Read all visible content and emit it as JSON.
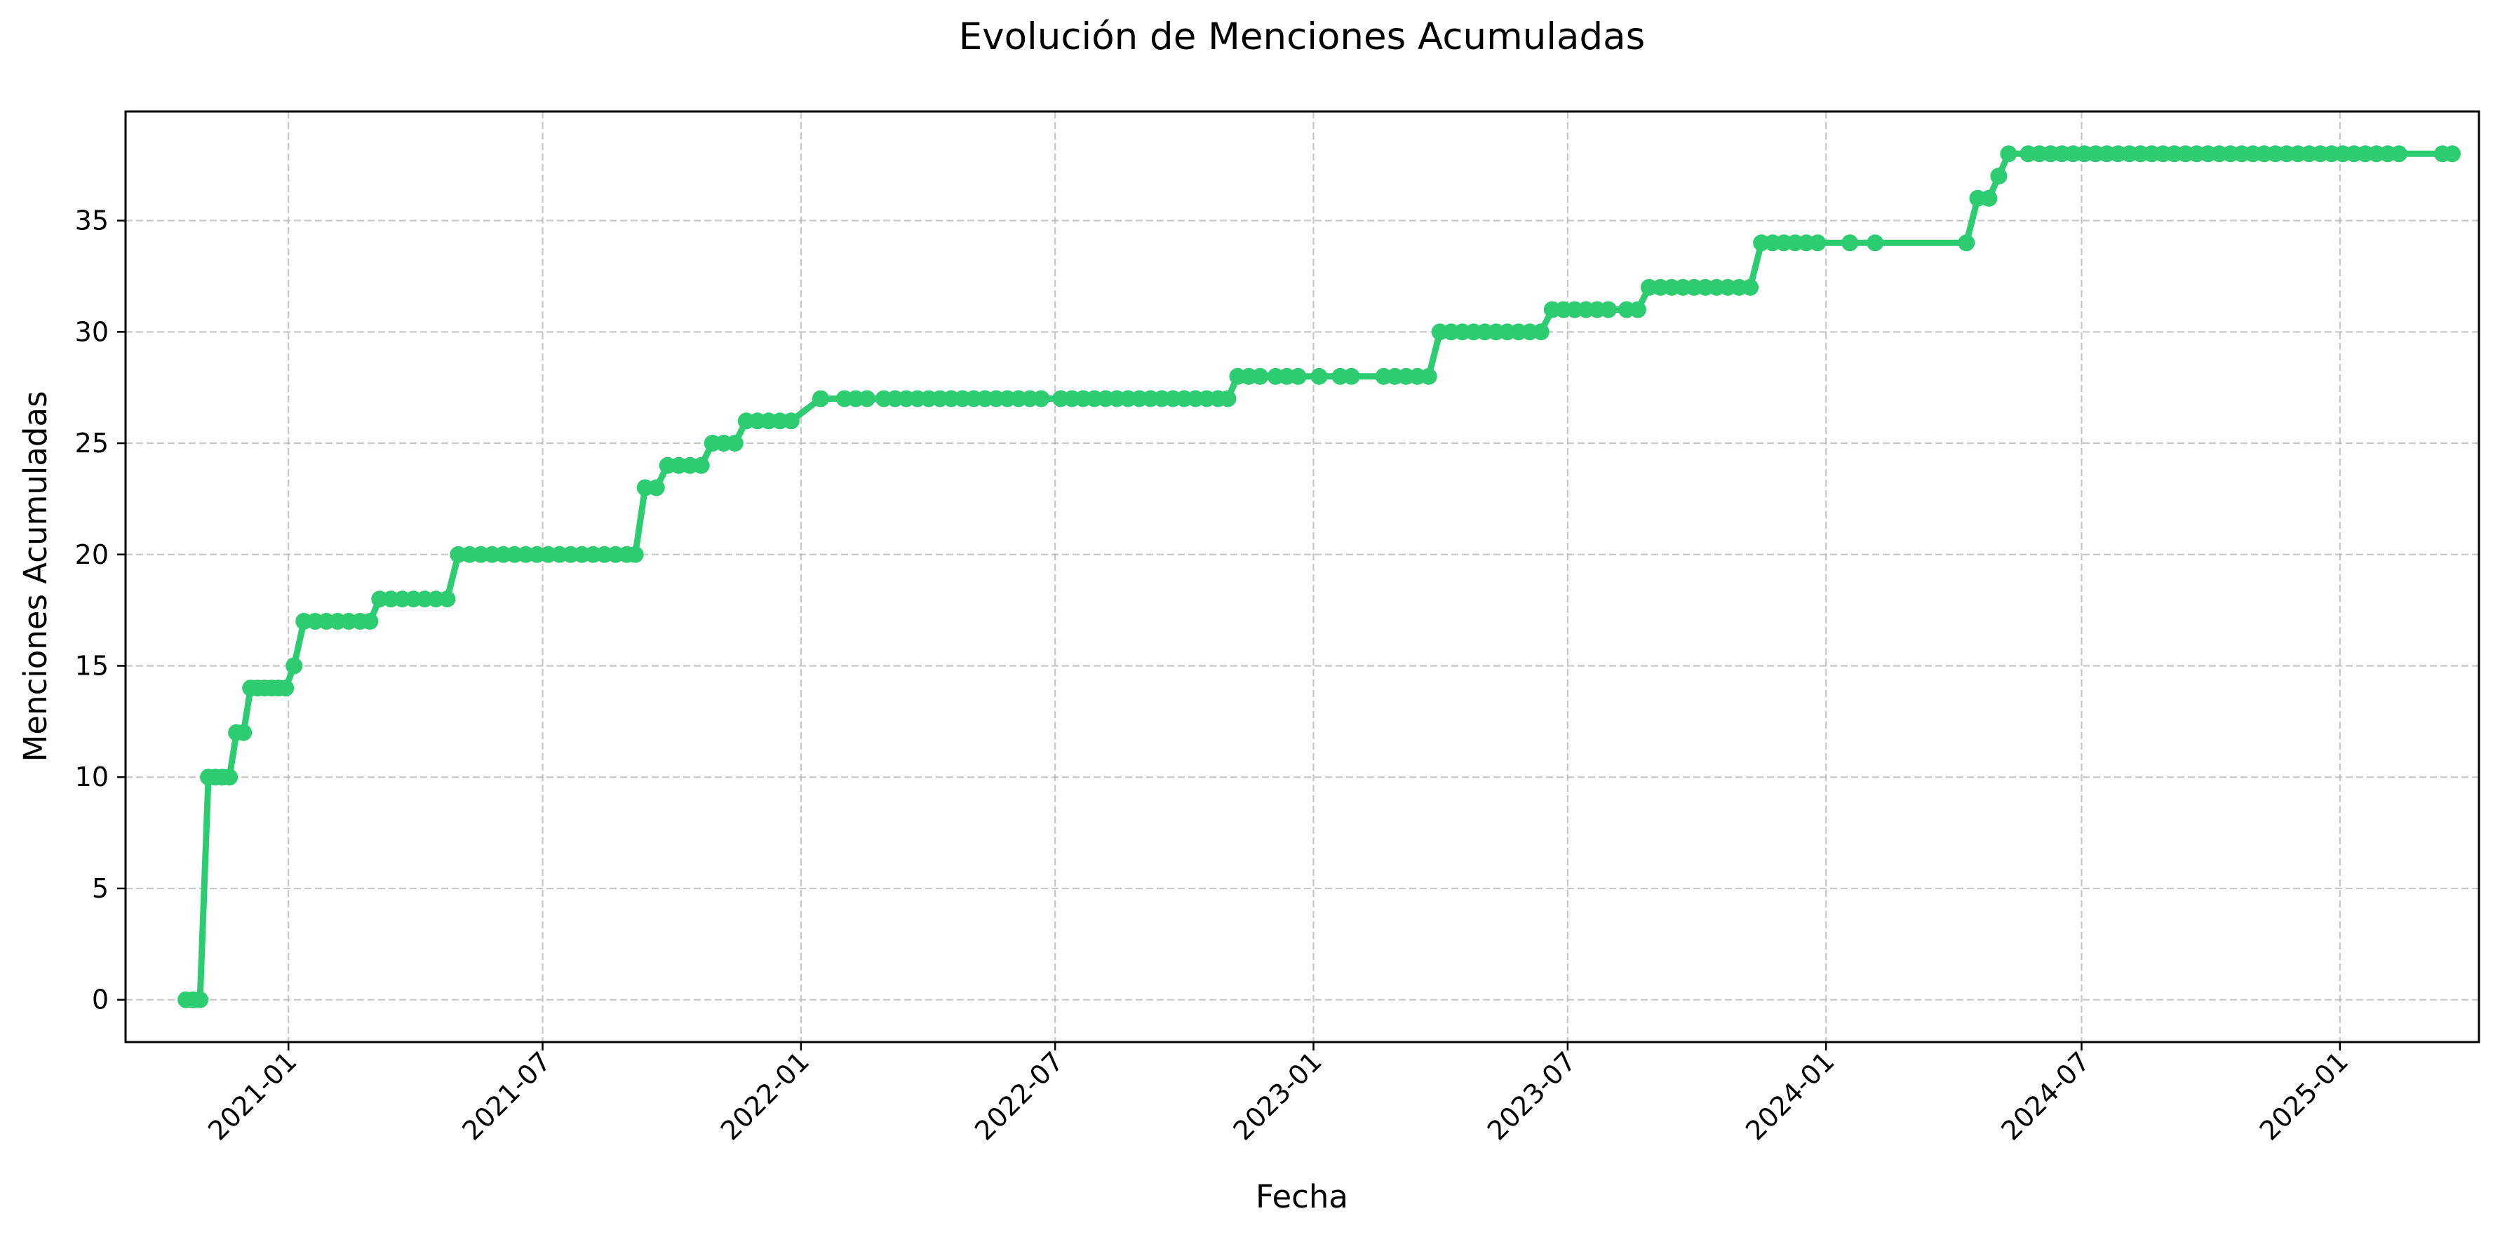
{
  "chart_data": {
    "type": "line",
    "title": "Evolución de Menciones Acumuladas",
    "xlabel": "Fecha",
    "ylabel": "Menciones Acumuladas",
    "x_type": "date",
    "xlim": [
      "2020-09-07",
      "2025-04-10"
    ],
    "ylim": [
      -1.9,
      39.9
    ],
    "x_ticks": [
      {
        "date": "2021-01-01",
        "label": "2021-01"
      },
      {
        "date": "2021-07-01",
        "label": "2021-07"
      },
      {
        "date": "2022-01-01",
        "label": "2022-01"
      },
      {
        "date": "2022-07-01",
        "label": "2022-07"
      },
      {
        "date": "2023-01-01",
        "label": "2023-01"
      },
      {
        "date": "2023-07-01",
        "label": "2023-07"
      },
      {
        "date": "2024-01-01",
        "label": "2024-01"
      },
      {
        "date": "2024-07-01",
        "label": "2024-07"
      },
      {
        "date": "2025-01-01",
        "label": "2025-01"
      }
    ],
    "y_ticks": [
      0,
      5,
      10,
      15,
      20,
      25,
      30,
      35
    ],
    "grid": true,
    "legend": "none",
    "series": [
      {
        "color": "#2ecc71",
        "marker": "circle",
        "points": [
          {
            "x": "2020-10-20",
            "y": 0
          },
          {
            "x": "2020-10-25",
            "y": 0
          },
          {
            "x": "2020-10-30",
            "y": 0
          },
          {
            "x": "2020-11-05",
            "y": 10
          },
          {
            "x": "2020-11-10",
            "y": 10
          },
          {
            "x": "2020-11-15",
            "y": 10
          },
          {
            "x": "2020-11-20",
            "y": 10
          },
          {
            "x": "2020-11-25",
            "y": 12
          },
          {
            "x": "2020-11-30",
            "y": 12
          },
          {
            "x": "2020-12-05",
            "y": 14
          },
          {
            "x": "2020-12-10",
            "y": 14
          },
          {
            "x": "2020-12-15",
            "y": 14
          },
          {
            "x": "2020-12-20",
            "y": 14
          },
          {
            "x": "2020-12-25",
            "y": 14
          },
          {
            "x": "2020-12-30",
            "y": 14
          },
          {
            "x": "2021-01-05",
            "y": 15
          },
          {
            "x": "2021-01-12",
            "y": 17
          },
          {
            "x": "2021-01-20",
            "y": 17
          },
          {
            "x": "2021-01-28",
            "y": 17
          },
          {
            "x": "2021-02-05",
            "y": 17
          },
          {
            "x": "2021-02-13",
            "y": 17
          },
          {
            "x": "2021-02-21",
            "y": 17
          },
          {
            "x": "2021-02-28",
            "y": 17
          },
          {
            "x": "2021-03-07",
            "y": 18
          },
          {
            "x": "2021-03-15",
            "y": 18
          },
          {
            "x": "2021-03-23",
            "y": 18
          },
          {
            "x": "2021-03-31",
            "y": 18
          },
          {
            "x": "2021-04-08",
            "y": 18
          },
          {
            "x": "2021-04-16",
            "y": 18
          },
          {
            "x": "2021-04-24",
            "y": 18
          },
          {
            "x": "2021-05-02",
            "y": 20
          },
          {
            "x": "2021-05-10",
            "y": 20
          },
          {
            "x": "2021-05-18",
            "y": 20
          },
          {
            "x": "2021-05-26",
            "y": 20
          },
          {
            "x": "2021-06-03",
            "y": 20
          },
          {
            "x": "2021-06-11",
            "y": 20
          },
          {
            "x": "2021-06-19",
            "y": 20
          },
          {
            "x": "2021-06-27",
            "y": 20
          },
          {
            "x": "2021-07-05",
            "y": 20
          },
          {
            "x": "2021-07-13",
            "y": 20
          },
          {
            "x": "2021-07-21",
            "y": 20
          },
          {
            "x": "2021-07-29",
            "y": 20
          },
          {
            "x": "2021-08-06",
            "y": 20
          },
          {
            "x": "2021-08-14",
            "y": 20
          },
          {
            "x": "2021-08-22",
            "y": 20
          },
          {
            "x": "2021-08-30",
            "y": 20
          },
          {
            "x": "2021-09-05",
            "y": 20
          },
          {
            "x": "2021-09-12",
            "y": 23
          },
          {
            "x": "2021-09-20",
            "y": 23
          },
          {
            "x": "2021-09-28",
            "y": 24
          },
          {
            "x": "2021-10-06",
            "y": 24
          },
          {
            "x": "2021-10-14",
            "y": 24
          },
          {
            "x": "2021-10-22",
            "y": 24
          },
          {
            "x": "2021-10-30",
            "y": 25
          },
          {
            "x": "2021-11-07",
            "y": 25
          },
          {
            "x": "2021-11-15",
            "y": 25
          },
          {
            "x": "2021-11-23",
            "y": 26
          },
          {
            "x": "2021-12-01",
            "y": 26
          },
          {
            "x": "2021-12-09",
            "y": 26
          },
          {
            "x": "2021-12-17",
            "y": 26
          },
          {
            "x": "2021-12-25",
            "y": 26
          },
          {
            "x": "2022-01-15",
            "y": 27
          },
          {
            "x": "2022-02-01",
            "y": 27
          },
          {
            "x": "2022-02-09",
            "y": 27
          },
          {
            "x": "2022-02-17",
            "y": 27
          },
          {
            "x": "2022-03-01",
            "y": 27
          },
          {
            "x": "2022-03-09",
            "y": 27
          },
          {
            "x": "2022-03-17",
            "y": 27
          },
          {
            "x": "2022-03-25",
            "y": 27
          },
          {
            "x": "2022-04-02",
            "y": 27
          },
          {
            "x": "2022-04-10",
            "y": 27
          },
          {
            "x": "2022-04-18",
            "y": 27
          },
          {
            "x": "2022-04-26",
            "y": 27
          },
          {
            "x": "2022-05-04",
            "y": 27
          },
          {
            "x": "2022-05-12",
            "y": 27
          },
          {
            "x": "2022-05-20",
            "y": 27
          },
          {
            "x": "2022-05-28",
            "y": 27
          },
          {
            "x": "2022-06-05",
            "y": 27
          },
          {
            "x": "2022-06-13",
            "y": 27
          },
          {
            "x": "2022-06-21",
            "y": 27
          },
          {
            "x": "2022-07-05",
            "y": 27
          },
          {
            "x": "2022-07-13",
            "y": 27
          },
          {
            "x": "2022-07-21",
            "y": 27
          },
          {
            "x": "2022-07-29",
            "y": 27
          },
          {
            "x": "2022-08-06",
            "y": 27
          },
          {
            "x": "2022-08-14",
            "y": 27
          },
          {
            "x": "2022-08-22",
            "y": 27
          },
          {
            "x": "2022-08-30",
            "y": 27
          },
          {
            "x": "2022-09-07",
            "y": 27
          },
          {
            "x": "2022-09-15",
            "y": 27
          },
          {
            "x": "2022-09-23",
            "y": 27
          },
          {
            "x": "2022-10-01",
            "y": 27
          },
          {
            "x": "2022-10-09",
            "y": 27
          },
          {
            "x": "2022-10-17",
            "y": 27
          },
          {
            "x": "2022-10-25",
            "y": 27
          },
          {
            "x": "2022-11-01",
            "y": 27
          },
          {
            "x": "2022-11-08",
            "y": 28
          },
          {
            "x": "2022-11-16",
            "y": 28
          },
          {
            "x": "2022-11-24",
            "y": 28
          },
          {
            "x": "2022-12-05",
            "y": 28
          },
          {
            "x": "2022-12-13",
            "y": 28
          },
          {
            "x": "2022-12-21",
            "y": 28
          },
          {
            "x": "2023-01-05",
            "y": 28
          },
          {
            "x": "2023-01-20",
            "y": 28
          },
          {
            "x": "2023-01-28",
            "y": 28
          },
          {
            "x": "2023-02-20",
            "y": 28
          },
          {
            "x": "2023-02-28",
            "y": 28
          },
          {
            "x": "2023-03-08",
            "y": 28
          },
          {
            "x": "2023-03-16",
            "y": 28
          },
          {
            "x": "2023-03-24",
            "y": 28
          },
          {
            "x": "2023-04-01",
            "y": 30
          },
          {
            "x": "2023-04-09",
            "y": 30
          },
          {
            "x": "2023-04-17",
            "y": 30
          },
          {
            "x": "2023-04-25",
            "y": 30
          },
          {
            "x": "2023-05-03",
            "y": 30
          },
          {
            "x": "2023-05-11",
            "y": 30
          },
          {
            "x": "2023-05-19",
            "y": 30
          },
          {
            "x": "2023-05-27",
            "y": 30
          },
          {
            "x": "2023-06-04",
            "y": 30
          },
          {
            "x": "2023-06-12",
            "y": 30
          },
          {
            "x": "2023-06-20",
            "y": 31
          },
          {
            "x": "2023-06-28",
            "y": 31
          },
          {
            "x": "2023-07-06",
            "y": 31
          },
          {
            "x": "2023-07-14",
            "y": 31
          },
          {
            "x": "2023-07-22",
            "y": 31
          },
          {
            "x": "2023-07-30",
            "y": 31
          },
          {
            "x": "2023-08-12",
            "y": 31
          },
          {
            "x": "2023-08-20",
            "y": 31
          },
          {
            "x": "2023-08-28",
            "y": 32
          },
          {
            "x": "2023-09-05",
            "y": 32
          },
          {
            "x": "2023-09-13",
            "y": 32
          },
          {
            "x": "2023-09-21",
            "y": 32
          },
          {
            "x": "2023-09-29",
            "y": 32
          },
          {
            "x": "2023-10-07",
            "y": 32
          },
          {
            "x": "2023-10-15",
            "y": 32
          },
          {
            "x": "2023-10-23",
            "y": 32
          },
          {
            "x": "2023-10-31",
            "y": 32
          },
          {
            "x": "2023-11-08",
            "y": 32
          },
          {
            "x": "2023-11-16",
            "y": 34
          },
          {
            "x": "2023-11-24",
            "y": 34
          },
          {
            "x": "2023-12-02",
            "y": 34
          },
          {
            "x": "2023-12-10",
            "y": 34
          },
          {
            "x": "2023-12-18",
            "y": 34
          },
          {
            "x": "2023-12-26",
            "y": 34
          },
          {
            "x": "2024-01-18",
            "y": 34
          },
          {
            "x": "2024-02-05",
            "y": 34
          },
          {
            "x": "2024-04-10",
            "y": 34
          },
          {
            "x": "2024-04-18",
            "y": 36
          },
          {
            "x": "2024-04-26",
            "y": 36
          },
          {
            "x": "2024-05-03",
            "y": 37
          },
          {
            "x": "2024-05-10",
            "y": 38
          },
          {
            "x": "2024-05-24",
            "y": 38
          },
          {
            "x": "2024-06-01",
            "y": 38
          },
          {
            "x": "2024-06-09",
            "y": 38
          },
          {
            "x": "2024-06-17",
            "y": 38
          },
          {
            "x": "2024-06-25",
            "y": 38
          },
          {
            "x": "2024-07-03",
            "y": 38
          },
          {
            "x": "2024-07-11",
            "y": 38
          },
          {
            "x": "2024-07-19",
            "y": 38
          },
          {
            "x": "2024-07-27",
            "y": 38
          },
          {
            "x": "2024-08-04",
            "y": 38
          },
          {
            "x": "2024-08-12",
            "y": 38
          },
          {
            "x": "2024-08-20",
            "y": 38
          },
          {
            "x": "2024-08-28",
            "y": 38
          },
          {
            "x": "2024-09-05",
            "y": 38
          },
          {
            "x": "2024-09-13",
            "y": 38
          },
          {
            "x": "2024-09-21",
            "y": 38
          },
          {
            "x": "2024-09-29",
            "y": 38
          },
          {
            "x": "2024-10-07",
            "y": 38
          },
          {
            "x": "2024-10-15",
            "y": 38
          },
          {
            "x": "2024-10-23",
            "y": 38
          },
          {
            "x": "2024-10-31",
            "y": 38
          },
          {
            "x": "2024-11-08",
            "y": 38
          },
          {
            "x": "2024-11-16",
            "y": 38
          },
          {
            "x": "2024-11-24",
            "y": 38
          },
          {
            "x": "2024-12-02",
            "y": 38
          },
          {
            "x": "2024-12-10",
            "y": 38
          },
          {
            "x": "2024-12-18",
            "y": 38
          },
          {
            "x": "2024-12-26",
            "y": 38
          },
          {
            "x": "2025-01-03",
            "y": 38
          },
          {
            "x": "2025-01-11",
            "y": 38
          },
          {
            "x": "2025-01-19",
            "y": 38
          },
          {
            "x": "2025-01-27",
            "y": 38
          },
          {
            "x": "2025-02-04",
            "y": 38
          },
          {
            "x": "2025-02-12",
            "y": 38
          },
          {
            "x": "2025-03-15",
            "y": 38
          },
          {
            "x": "2025-03-22",
            "y": 38
          }
        ]
      }
    ]
  }
}
